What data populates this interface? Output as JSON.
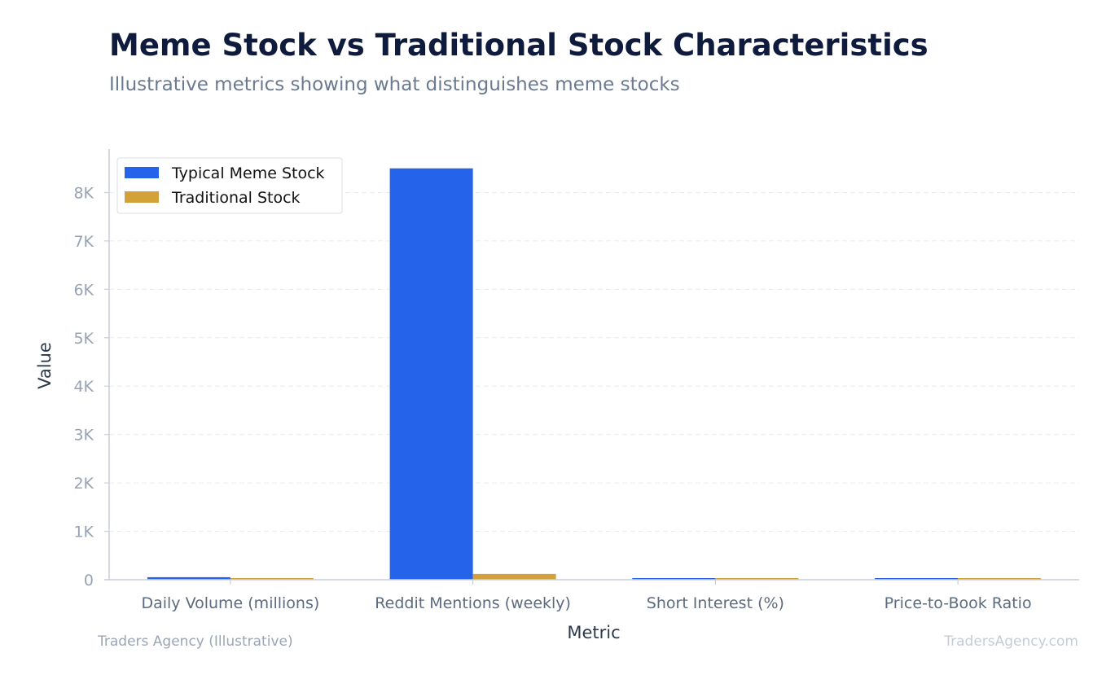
{
  "chart_data": {
    "type": "bar",
    "title": "Meme Stock vs Traditional Stock Characteristics",
    "subtitle": "Illustrative metrics showing what distinguishes meme stocks",
    "xlabel": "Metric",
    "ylabel": "Value",
    "categories": [
      "Daily Volume (millions)",
      "Reddit Mentions (weekly)",
      "Short Interest (%)",
      "Price-to-Book Ratio"
    ],
    "series": [
      {
        "name": "Typical Meme Stock",
        "color": "#2563eb",
        "values": [
          52,
          8500,
          28,
          8
        ]
      },
      {
        "name": "Traditional Stock",
        "color": "#d4a03a",
        "values": [
          8,
          120,
          3,
          2.5
        ]
      }
    ],
    "ylim": [
      0,
      8900
    ],
    "yticks": [
      0,
      1000,
      2000,
      3000,
      4000,
      5000,
      6000,
      7000,
      8000
    ],
    "ytick_labels": [
      "0",
      "1K",
      "2K",
      "3K",
      "4K",
      "5K",
      "6K",
      "7K",
      "8K"
    ],
    "grid": true,
    "legend_position": "top-left"
  },
  "footer": {
    "source": "Traders Agency (Illustrative)",
    "watermark": "TradersAgency.com"
  }
}
